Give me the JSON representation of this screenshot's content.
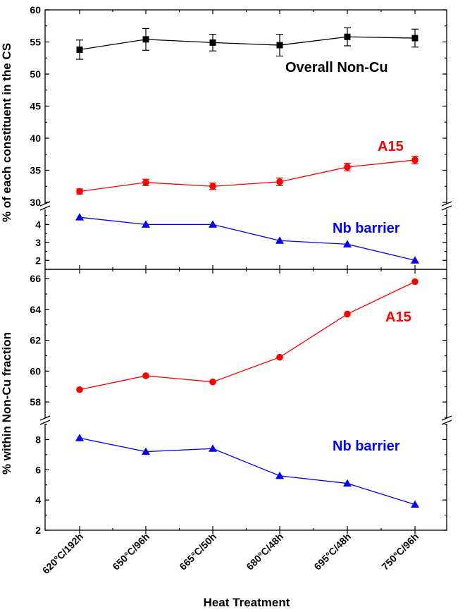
{
  "chart_data": {
    "type": "line",
    "xlabel": "Heat Treatment",
    "categories": [
      "620°C/192h",
      "650°C/96h",
      "665°C/50h",
      "680°C/48h",
      "695°C/48h",
      "750°C/96h"
    ],
    "colors": {
      "overall": "#000000",
      "a15": "#ff0000",
      "nb": "#0000ff"
    },
    "top_panel": {
      "ylabel": "% of each constituent in the CS",
      "ylim_upper": [
        30,
        60
      ],
      "ylim_lower": [
        1.5,
        4.8
      ],
      "yticks_upper": [
        "30",
        "35",
        "40",
        "45",
        "50",
        "55",
        "60"
      ],
      "yticks_lower": [
        "2",
        "3",
        "4"
      ],
      "series": [
        {
          "name": "Overall Non-Cu",
          "color": "#000000",
          "marker": "square",
          "values": [
            53.8,
            55.4,
            54.9,
            54.5,
            55.8,
            55.6
          ],
          "errors": [
            1.5,
            1.7,
            1.3,
            1.7,
            1.4,
            1.4
          ]
        },
        {
          "name": "A15",
          "color": "#ff0000",
          "marker": "circle",
          "values": [
            31.7,
            33.1,
            32.5,
            33.2,
            35.5,
            36.6
          ],
          "errors": [
            0.4,
            0.5,
            0.5,
            0.6,
            0.6,
            0.6
          ]
        },
        {
          "name": "Nb barrier",
          "color": "#0000ff",
          "marker": "triangle",
          "values": [
            4.4,
            4.0,
            4.0,
            3.1,
            2.9,
            2.0
          ]
        }
      ]
    },
    "bottom_panel": {
      "ylabel": "% within Non-Cu fraction",
      "ylim_upper": [
        57,
        66.6
      ],
      "ylim_lower": [
        2,
        9
      ],
      "yticks_upper": [
        "58",
        "60",
        "62",
        "64",
        "66"
      ],
      "yticks_lower": [
        "2",
        "4",
        "6",
        "8"
      ],
      "series": [
        {
          "name": "A15",
          "color": "#ff0000",
          "marker": "circle",
          "values": [
            58.8,
            59.7,
            59.3,
            60.9,
            63.7,
            65.8
          ]
        },
        {
          "name": "Nb barrier",
          "color": "#0000ff",
          "marker": "triangle",
          "values": [
            8.1,
            7.2,
            7.4,
            5.6,
            5.1,
            3.7
          ]
        }
      ]
    }
  }
}
